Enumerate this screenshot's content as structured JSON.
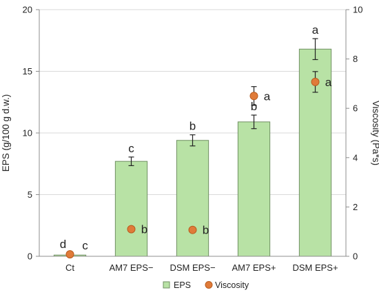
{
  "chart_data": {
    "type": "bar",
    "categories": [
      "Ct",
      "AM7 EPS−",
      "DSM EPS−",
      "AM7 EPS+",
      "DSM EPS+"
    ],
    "series": [
      {
        "name": "EPS",
        "kind": "bar",
        "axis": "left",
        "values": [
          0.1,
          7.7,
          9.4,
          10.9,
          16.8
        ],
        "error": [
          0.05,
          0.35,
          0.45,
          0.55,
          0.85
        ],
        "letters": [
          "d",
          "c",
          "b",
          "b",
          "a"
        ]
      },
      {
        "name": "Viscosity",
        "kind": "scatter",
        "axis": "right",
        "values": [
          0.08,
          1.1,
          1.07,
          6.5,
          7.07
        ],
        "error": [
          0,
          0,
          0,
          0.38,
          0.42
        ],
        "letters": [
          "c",
          "b",
          "b",
          "a",
          "a"
        ]
      }
    ],
    "ylabel": "EPS (g/100 g d.w.)",
    "y2label": "Viscosity (Pa*s)",
    "ylim": [
      0,
      20
    ],
    "y2lim": [
      0,
      10
    ],
    "yticks": [
      "0",
      "5",
      "10",
      "15",
      "20"
    ],
    "y2ticks": [
      "0",
      "2",
      "4",
      "6",
      "8",
      "10"
    ],
    "grid": true,
    "legend_position": "bottom",
    "colors": {
      "bar_fill": "#b8e2a5",
      "bar_stroke": "#6f8f62",
      "point_fill": "#e07b39",
      "point_stroke": "#b85c1f",
      "grid": "#d9d9d9",
      "axis": "#8c8c8c"
    }
  }
}
